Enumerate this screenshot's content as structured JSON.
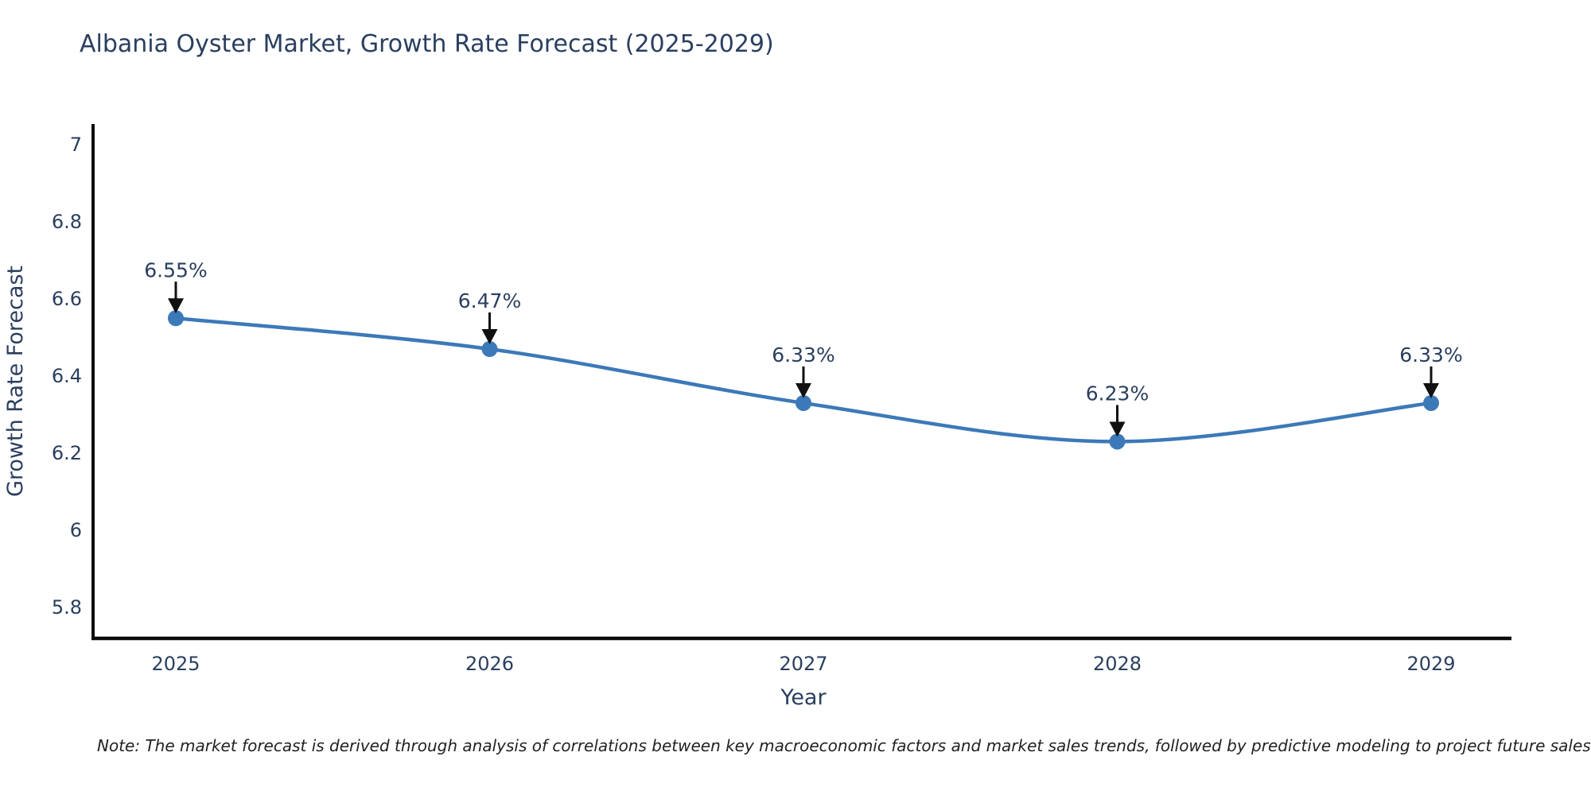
{
  "title": "Albania Oyster Market, Growth Rate Forecast (2025-2029)",
  "note": "Note: The market forecast is derived through analysis of correlations between key macroeconomic factors and market sales trends, followed by predictive modeling to project future sales",
  "chart_data": {
    "type": "line",
    "title": "Albania Oyster Market, Growth Rate Forecast (2025-2029)",
    "xlabel": "Year",
    "ylabel": "Growth Rate Forecast",
    "x": [
      2025,
      2026,
      2027,
      2028,
      2029
    ],
    "x_tick_labels": [
      "2025",
      "2026",
      "2027",
      "2028",
      "2029"
    ],
    "series": [
      {
        "name": "Growth Rate Forecast",
        "values": [
          6.55,
          6.47,
          6.33,
          6.23,
          6.33
        ],
        "point_labels": [
          "6.55%",
          "6.47%",
          "6.33%",
          "6.23%",
          "6.33%"
        ]
      }
    ],
    "y_ticks": [
      5.8,
      6.0,
      6.2,
      6.4,
      6.6,
      6.8,
      7.0
    ],
    "y_tick_labels": [
      "5.8",
      "6",
      "6.2",
      "6.4",
      "6.6",
      "6.8",
      "7"
    ],
    "ylim": [
      5.72,
      7.05
    ],
    "grid": false,
    "legend_position": "none",
    "colors": {
      "line": "#3c79b8",
      "marker": "#3c79b8",
      "arrow": "#111111",
      "axis": "#0a0a0a",
      "text": "#2a3f5f",
      "note_text": "#222222",
      "background": "#ffffff"
    }
  }
}
